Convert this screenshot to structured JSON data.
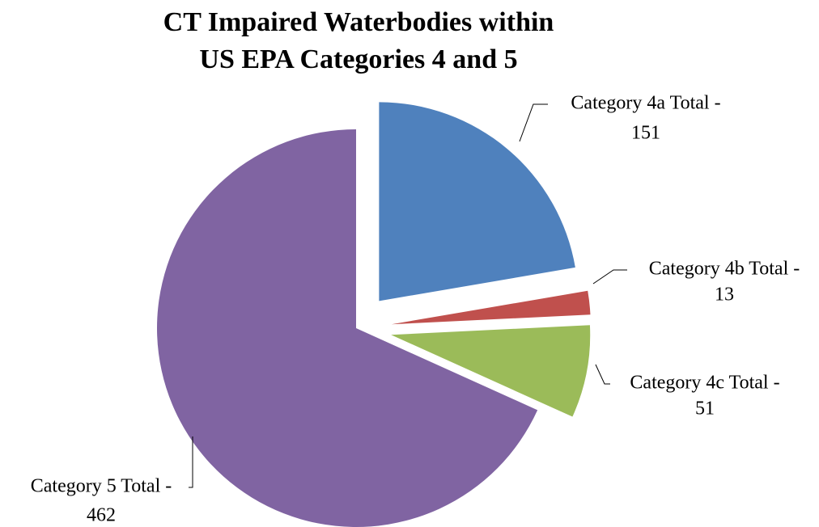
{
  "chart_data": {
    "type": "pie",
    "title": [
      "CT Impaired Waterbodies within",
      "US EPA Categories 4 and 5"
    ],
    "slices": [
      {
        "label": "Category 4a Total -",
        "value": 151,
        "color": "#4F81BD",
        "exploded": true
      },
      {
        "label": "Category 4b Total -",
        "value": 13,
        "color": "#C0504D",
        "exploded": true
      },
      {
        "label": "Category 4c Total -",
        "value": 51,
        "color": "#9BBB59",
        "exploded": true
      },
      {
        "label": "Category 5 Total -",
        "value": 462,
        "color": "#8064A2",
        "exploded": false
      }
    ],
    "legend": "none",
    "data_labels": "outside with leader lines"
  }
}
